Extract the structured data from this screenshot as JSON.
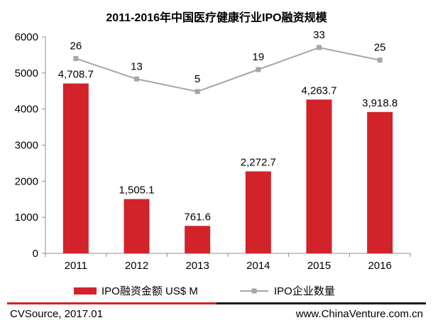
{
  "chart_data": {
    "type": "bar+line",
    "title": "2011-2016年中国医疗健康行业IPO融资规模",
    "categories": [
      "2011",
      "2012",
      "2013",
      "2014",
      "2015",
      "2016"
    ],
    "ylim": [
      0,
      6000
    ],
    "yticks": [
      0,
      1000,
      2000,
      3000,
      4000,
      5000,
      6000
    ],
    "series": [
      {
        "name": "IPO融资金额 US$ M",
        "kind": "bar",
        "color": "#d2232a",
        "values": [
          4708.7,
          1505.1,
          761.6,
          2272.7,
          4263.7,
          3918.8
        ],
        "labels": [
          "4,708.7",
          "1,505.1",
          "761.6",
          "2,272.7",
          "4,263.7",
          "3,918.8"
        ]
      },
      {
        "name": "IPO企业数量",
        "kind": "line",
        "color": "#a6a6a6",
        "values": [
          26,
          13,
          5,
          19,
          33,
          25
        ],
        "labels": [
          "26",
          "13",
          "5",
          "19",
          "33",
          "25"
        ]
      }
    ]
  },
  "footer": {
    "source": "CVSource, 2017.01",
    "website": "www.ChinaVenture.com.cn"
  }
}
